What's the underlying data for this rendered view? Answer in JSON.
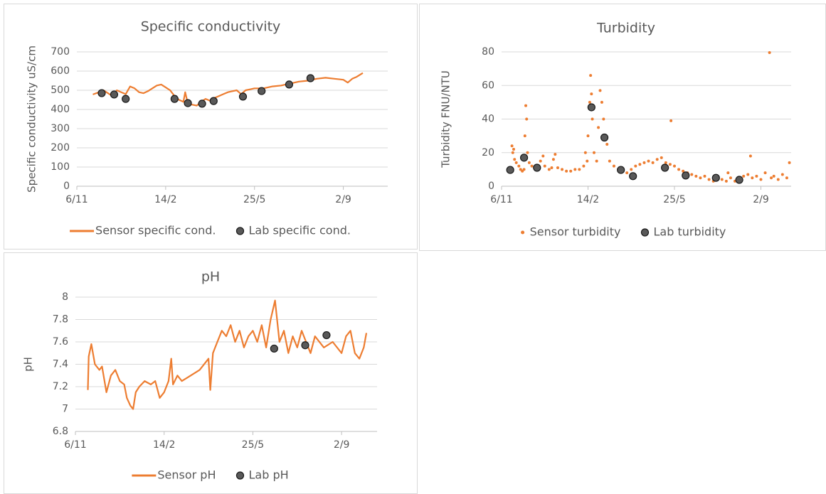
{
  "chart_data": [
    {
      "type": "line",
      "title": "Specific conductivity",
      "ylabel": "Specific conductivity  uS/cm",
      "xlim": [
        0,
        350
      ],
      "xticks": [
        {
          "value": 0,
          "label": "6/11"
        },
        {
          "value": 100,
          "label": "14/2"
        },
        {
          "value": 200,
          "label": "25/5"
        },
        {
          "value": 300,
          "label": "2/9"
        }
      ],
      "ylim": [
        0,
        700
      ],
      "yticks": [
        0,
        100,
        200,
        300,
        400,
        500,
        600,
        700
      ],
      "grid": true,
      "legend": "bottom",
      "series": [
        {
          "name": "Sensor specific cond.",
          "color": "#ed7d31",
          "mark": "line",
          "x": [
            18,
            25,
            30,
            35,
            40,
            45,
            50,
            55,
            60,
            65,
            70,
            75,
            80,
            85,
            90,
            95,
            100,
            105,
            110,
            115,
            120,
            122,
            125,
            130,
            135,
            140,
            145,
            150,
            155,
            160,
            165,
            170,
            175,
            180,
            185,
            190,
            195,
            200,
            210,
            220,
            230,
            240,
            250,
            260,
            270,
            280,
            290,
            300,
            305,
            310,
            315,
            322
          ],
          "values": [
            478,
            490,
            500,
            485,
            470,
            500,
            490,
            480,
            520,
            510,
            490,
            485,
            495,
            510,
            525,
            530,
            515,
            500,
            470,
            450,
            440,
            490,
            430,
            425,
            420,
            440,
            455,
            445,
            460,
            470,
            480,
            490,
            495,
            500,
            480,
            500,
            505,
            510,
            510,
            520,
            525,
            535,
            545,
            550,
            560,
            565,
            560,
            555,
            540,
            560,
            570,
            590
          ]
        },
        {
          "name": "Lab specific cond.",
          "color": "#595959",
          "mark": "marker",
          "x": [
            28,
            42,
            55,
            110,
            125,
            141,
            154,
            187,
            208,
            239,
            263
          ],
          "values": [
            485,
            478,
            455,
            455,
            433,
            430,
            444,
            467,
            496,
            530,
            563
          ]
        }
      ]
    },
    {
      "type": "scatter",
      "title": "Turbidity",
      "ylabel": "Turbidity FNU/NTU",
      "xlim": [
        0,
        335
      ],
      "xticks": [
        {
          "value": 0,
          "label": "6/11"
        },
        {
          "value": 100,
          "label": "14/2"
        },
        {
          "value": 200,
          "label": "25/5"
        },
        {
          "value": 300,
          "label": "2/9"
        }
      ],
      "ylim": [
        0,
        80
      ],
      "yticks": [
        0,
        20,
        40,
        60,
        80
      ],
      "grid": true,
      "legend": "bottom",
      "series": [
        {
          "name": "Sensor turbidity",
          "color": "#ed7d31",
          "mark": "dot",
          "x": [
            12,
            13,
            14,
            15,
            17,
            20,
            22,
            24,
            26,
            27,
            28,
            29,
            30,
            32,
            35,
            38,
            42,
            45,
            48,
            50,
            55,
            58,
            60,
            62,
            65,
            70,
            75,
            80,
            85,
            90,
            95,
            97,
            99,
            100,
            102,
            103,
            104,
            105,
            107,
            110,
            112,
            114,
            116,
            118,
            120,
            122,
            125,
            130,
            135,
            140,
            145,
            150,
            155,
            160,
            165,
            170,
            175,
            180,
            185,
            190,
            195,
            196,
            200,
            205,
            210,
            215,
            220,
            225,
            230,
            235,
            240,
            245,
            250,
            255,
            260,
            262,
            265,
            270,
            275,
            280,
            285,
            288,
            290,
            295,
            300,
            305,
            310,
            312,
            315,
            320,
            325,
            330,
            333
          ],
          "values": [
            24,
            20,
            22,
            16,
            14,
            12,
            10,
            9,
            10,
            30,
            48,
            40,
            20,
            14,
            12,
            11,
            12,
            15,
            18,
            12,
            10,
            11,
            16,
            19,
            11,
            10,
            9,
            9,
            10,
            10,
            12,
            20,
            15,
            30,
            50,
            66,
            55,
            40,
            20,
            15,
            35,
            57,
            50,
            40,
            30,
            25,
            15,
            12,
            10,
            9,
            8,
            10,
            12,
            13,
            14,
            15,
            14,
            16,
            17,
            14,
            13,
            39,
            12,
            10,
            9,
            8,
            7,
            6,
            5,
            6,
            4,
            3,
            5,
            4,
            3,
            8,
            5,
            3,
            4,
            6,
            7,
            18,
            5,
            6,
            4,
            8,
            79.6,
            5,
            6,
            4,
            7,
            5,
            14
          ]
        },
        {
          "name": "Lab turbidity",
          "color": "#595959",
          "mark": "marker",
          "x": [
            10,
            26,
            41,
            104,
            119,
            138,
            152,
            189,
            213,
            248,
            275
          ],
          "values": [
            9.7,
            17,
            11,
            47,
            29,
            9.7,
            6,
            11,
            6.4,
            5,
            3.8
          ]
        }
      ]
    },
    {
      "type": "line",
      "title": "pH",
      "ylabel": "pH",
      "xlim": [
        0,
        340
      ],
      "xticks": [
        {
          "value": 0,
          "label": "6/11"
        },
        {
          "value": 100,
          "label": "14/2"
        },
        {
          "value": 200,
          "label": "25/5"
        },
        {
          "value": 300,
          "label": "2/9"
        }
      ],
      "ylim": [
        6.8,
        8
      ],
      "yticks": [
        6.8,
        7,
        7.2,
        7.4,
        7.6,
        7.8,
        8
      ],
      "grid": true,
      "legend": "bottom",
      "series": [
        {
          "name": "Sensor pH",
          "color": "#ed7d31",
          "mark": "line",
          "x": [
            14,
            15,
            18,
            22,
            27,
            30,
            35,
            40,
            45,
            50,
            55,
            58,
            62,
            65,
            68,
            72,
            78,
            85,
            90,
            95,
            100,
            105,
            108,
            110,
            115,
            120,
            130,
            140,
            150,
            152,
            155,
            160,
            165,
            170,
            175,
            180,
            185,
            190,
            195,
            200,
            205,
            210,
            215,
            220,
            225,
            230,
            235,
            240,
            245,
            250,
            255,
            260,
            265,
            270,
            280,
            290,
            300,
            305,
            310,
            315,
            320,
            325,
            328
          ],
          "values": [
            7.17,
            7.47,
            7.58,
            7.4,
            7.35,
            7.38,
            7.15,
            7.3,
            7.35,
            7.25,
            7.22,
            7.1,
            7.03,
            7.0,
            7.15,
            7.2,
            7.25,
            7.22,
            7.25,
            7.1,
            7.15,
            7.25,
            7.45,
            7.22,
            7.3,
            7.25,
            7.3,
            7.35,
            7.45,
            7.17,
            7.5,
            7.6,
            7.7,
            7.65,
            7.75,
            7.6,
            7.7,
            7.55,
            7.65,
            7.7,
            7.6,
            7.75,
            7.55,
            7.8,
            7.97,
            7.6,
            7.7,
            7.5,
            7.65,
            7.55,
            7.7,
            7.6,
            7.5,
            7.65,
            7.55,
            7.6,
            7.5,
            7.65,
            7.7,
            7.5,
            7.45,
            7.55,
            7.68
          ]
        },
        {
          "name": "Lab pH",
          "color": "#595959",
          "mark": "marker",
          "x": [
            224,
            259,
            283
          ],
          "values": [
            7.54,
            7.57,
            7.66
          ]
        }
      ]
    }
  ]
}
